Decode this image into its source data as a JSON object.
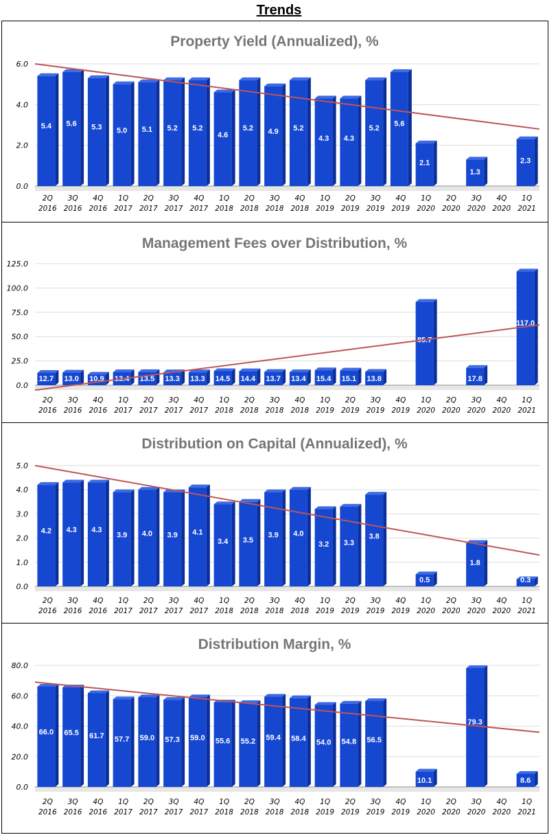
{
  "page": {
    "title": "Trends"
  },
  "colors": {
    "bar_front": "#1547d1",
    "bar_side": "#0b2f9a",
    "bar_top": "#3c6ae3",
    "trend": "#bf5555",
    "grid": "#dddddd",
    "floor": "#e6e6e6"
  },
  "chart_data": [
    {
      "type": "bar",
      "title": "Property Yield (Annualized), %",
      "categories": [
        "2Q 2016",
        "3Q 2016",
        "4Q 2016",
        "1Q 2017",
        "2Q 2017",
        "3Q 2017",
        "4Q 2017",
        "1Q 2018",
        "2Q 2018",
        "3Q 2018",
        "4Q 2018",
        "1Q 2019",
        "2Q 2019",
        "3Q 2019",
        "4Q 2019",
        "1Q 2020",
        "2Q 2020",
        "3Q 2020",
        "4Q 2020",
        "1Q 2021"
      ],
      "values": [
        5.4,
        5.6,
        5.3,
        5.0,
        5.1,
        5.2,
        5.2,
        4.6,
        5.2,
        4.9,
        5.2,
        4.3,
        4.3,
        5.2,
        5.6,
        2.1,
        null,
        1.3,
        null,
        2.3
      ],
      "labels": [
        "5.4",
        "5.6",
        "5.3",
        "5.0",
        "5.1",
        "5.2",
        "5.2",
        "4.6",
        "5.2",
        "4.9",
        "5.2",
        "4.3",
        "4.3",
        "5.2",
        "5.6",
        "2.1",
        "",
        "1.3",
        "",
        "2.3"
      ],
      "yticks": [
        0.0,
        2.0,
        4.0,
        6.0
      ],
      "ytick_labels": [
        "0.0",
        "2.0",
        "4.0",
        "6.0"
      ],
      "ylim": [
        0,
        6.0
      ],
      "trendline": {
        "start": 6.0,
        "end": 2.8
      },
      "xlabel": "",
      "ylabel": ""
    },
    {
      "type": "bar",
      "title": "Management Fees over Distribution, %",
      "categories": [
        "2Q 2016",
        "3Q 2016",
        "4Q 2016",
        "1Q 2017",
        "2Q 2017",
        "3Q 2017",
        "4Q 2017",
        "1Q 2018",
        "2Q 2018",
        "3Q 2018",
        "4Q 2018",
        "1Q 2019",
        "2Q 2019",
        "3Q 2019",
        "4Q 2019",
        "1Q 2020",
        "2Q 2020",
        "3Q 2020",
        "4Q 2020",
        "1Q 2021"
      ],
      "values": [
        12.7,
        13.0,
        10.9,
        13.4,
        13.5,
        13.3,
        13.3,
        14.5,
        14.4,
        13.7,
        13.4,
        15.4,
        15.1,
        13.8,
        null,
        85.7,
        null,
        17.8,
        null,
        117.0
      ],
      "labels": [
        "12.7",
        "13.0",
        "10.9",
        "13.4",
        "13.5",
        "13.3",
        "13.3",
        "14.5",
        "14.4",
        "13.7",
        "13.4",
        "15.4",
        "15.1",
        "13.8",
        "",
        "85.7",
        "",
        "17.8",
        "",
        "117.0"
      ],
      "yticks": [
        0.0,
        25.0,
        50.0,
        75.0,
        100.0,
        125.0
      ],
      "ytick_labels": [
        "0.0",
        "25.0",
        "50.0",
        "75.0",
        "100.0",
        "125.0"
      ],
      "ylim": [
        0,
        125.0
      ],
      "trendline": {
        "start": -5,
        "end": 62
      },
      "xlabel": "",
      "ylabel": ""
    },
    {
      "type": "bar",
      "title": "Distribution on Capital (Annualized), %",
      "categories": [
        "2Q 2016",
        "3Q 2016",
        "4Q 2016",
        "1Q 2017",
        "2Q 2017",
        "3Q 2017",
        "4Q 2017",
        "1Q 2018",
        "2Q 2018",
        "3Q 2018",
        "4Q 2018",
        "1Q 2019",
        "2Q 2019",
        "3Q 2019",
        "4Q 2019",
        "1Q 2020",
        "2Q 2020",
        "3Q 2020",
        "4Q 2020",
        "1Q 2021"
      ],
      "values": [
        4.2,
        4.3,
        4.3,
        3.9,
        4.0,
        3.9,
        4.1,
        3.4,
        3.5,
        3.9,
        4.0,
        3.2,
        3.3,
        3.8,
        null,
        0.5,
        null,
        1.8,
        null,
        0.3
      ],
      "labels": [
        "4.2",
        "4.3",
        "4.3",
        "3.9",
        "4.0",
        "3.9",
        "4.1",
        "3.4",
        "3.5",
        "3.9",
        "4.0",
        "3.2",
        "3.3",
        "3.8",
        "",
        "0.5",
        "",
        "1.8",
        "",
        "0.3"
      ],
      "yticks": [
        0.0,
        1.0,
        2.0,
        3.0,
        4.0,
        5.0
      ],
      "ytick_labels": [
        "0.0",
        "1.0",
        "2.0",
        "3.0",
        "4.0",
        "5.0"
      ],
      "ylim": [
        0,
        5.0
      ],
      "trendline": {
        "start": 5.0,
        "end": 1.3
      },
      "xlabel": "",
      "ylabel": ""
    },
    {
      "type": "bar",
      "title": "Distribution Margin, %",
      "categories": [
        "2Q 2016",
        "3Q 2016",
        "4Q 2016",
        "1Q 2017",
        "2Q 2017",
        "3Q 2017",
        "4Q 2017",
        "1Q 2018",
        "2Q 2018",
        "3Q 2018",
        "4Q 2018",
        "1Q 2019",
        "2Q 2019",
        "3Q 2019",
        "4Q 2019",
        "1Q 2020",
        "2Q 2020",
        "3Q 2020",
        "4Q 2020",
        "1Q 2021"
      ],
      "values": [
        66.0,
        65.5,
        61.7,
        57.7,
        59.0,
        57.3,
        59.0,
        55.6,
        55.2,
        59.4,
        58.4,
        54.0,
        54.8,
        56.5,
        null,
        10.1,
        null,
        79.3,
        null,
        8.6
      ],
      "labels": [
        "66.0",
        "65.5",
        "61.7",
        "57.7",
        "59.0",
        "57.3",
        "59.0",
        "55.6",
        "55.2",
        "59.4",
        "58.4",
        "54.0",
        "54.8",
        "56.5",
        "",
        "10.1",
        "",
        "79.3",
        "",
        "8.6"
      ],
      "yticks": [
        0.0,
        20.0,
        40.0,
        60.0,
        80.0
      ],
      "ytick_labels": [
        "0.0",
        "20.0",
        "40.0",
        "60.0",
        "80.0"
      ],
      "ylim": [
        0,
        80.0
      ],
      "trendline": {
        "start": 69,
        "end": 36
      },
      "xlabel": "",
      "ylabel": ""
    }
  ]
}
